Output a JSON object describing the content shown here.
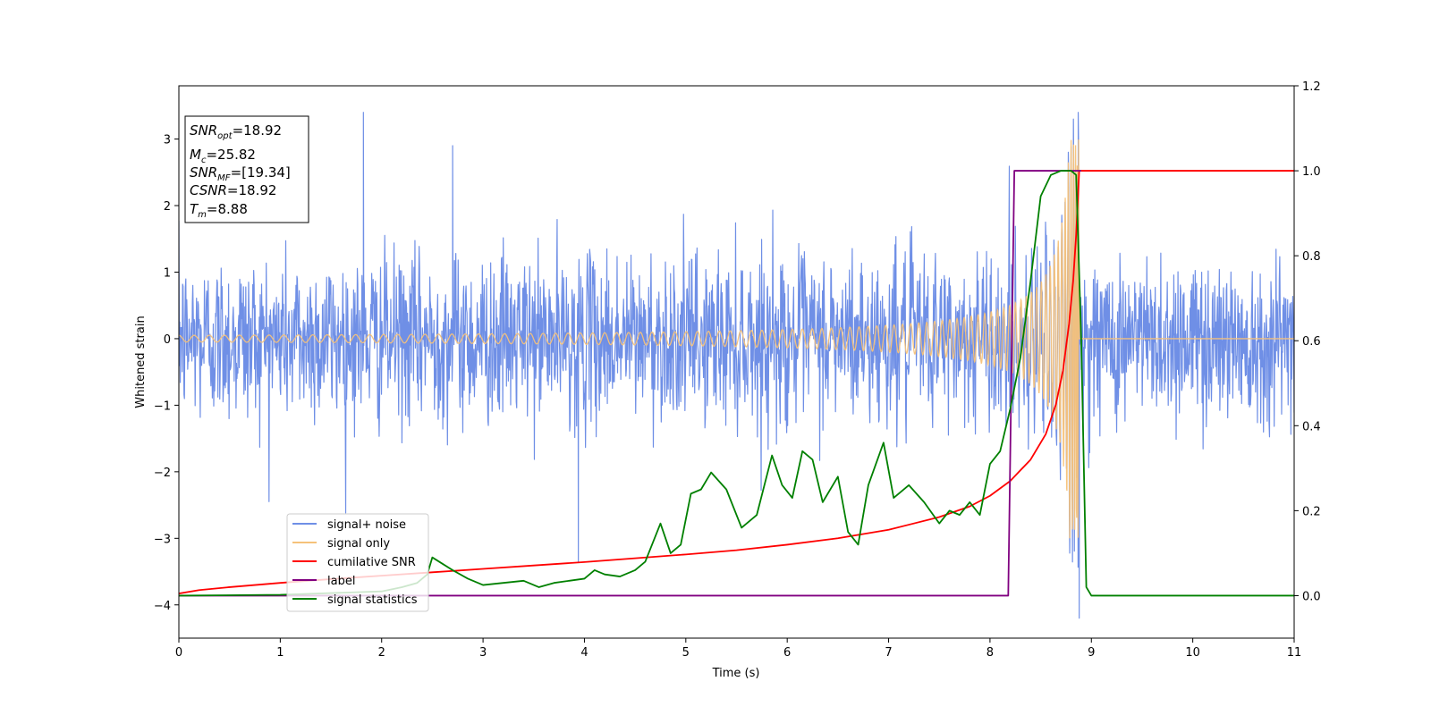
{
  "chart_data": {
    "type": "line",
    "xlabel": "Time (s)",
    "ylabel": "Whitened strain",
    "xlim": [
      0,
      11
    ],
    "ylim": [
      -4.5,
      3.8
    ],
    "y2lim": [
      -0.1,
      1.2
    ],
    "x_ticks": [
      0,
      1,
      2,
      3,
      4,
      5,
      6,
      7,
      8,
      9,
      10,
      11
    ],
    "y_ticks": [
      -4,
      -3,
      -2,
      -1,
      0,
      1,
      2,
      3
    ],
    "y_tick_labels": [
      "−4",
      "−3",
      "−2",
      "−1",
      "0",
      "1",
      "2",
      "3"
    ],
    "y2_ticks": [
      0.0,
      0.2,
      0.4,
      0.6,
      0.8,
      1.0,
      1.2
    ],
    "y2_tick_labels": [
      "0.0",
      "0.2",
      "0.4",
      "0.6",
      "0.8",
      "1.0",
      "1.2"
    ],
    "grid": false,
    "legend_position": "lower-left",
    "annotation_box": {
      "lines": [
        {
          "var": "SNR",
          "sub": "opt",
          "value": "=18.92"
        },
        {
          "var": "M",
          "sub": "c",
          "value": "=25.82"
        },
        {
          "var": "SNR",
          "sub": "MF",
          "value": "=[19.34]"
        },
        {
          "var": "CSNR",
          "sub": "",
          "value": "=18.92"
        },
        {
          "var": "T",
          "sub": "m",
          "value": "=8.88"
        }
      ]
    },
    "series": [
      {
        "name": "signal+ noise",
        "color": "#6f8fe6",
        "axis": "left",
        "noise_amplitude": 1.0,
        "peaks": [
          {
            "x": 1.82,
            "y": 3.4
          },
          {
            "x": 8.87,
            "y": 3.4
          },
          {
            "x": 8.88,
            "y": -4.2
          },
          {
            "x": 3.94,
            "y": -3.35
          },
          {
            "x": 2.7,
            "y": 2.9
          }
        ]
      },
      {
        "name": "signal only",
        "color": "#f5c27a",
        "axis": "left",
        "merger_time": 8.88,
        "peak_amplitude": 3.0,
        "baseline_amplitude": 0.05
      },
      {
        "name": "cumilative SNR",
        "color": "#ff0000",
        "axis": "right",
        "x": [
          0,
          0.2,
          0.5,
          1,
          1.5,
          2,
          2.5,
          3,
          3.5,
          4,
          4.5,
          5,
          5.5,
          6,
          6.5,
          7,
          7.5,
          7.8,
          8.0,
          8.2,
          8.4,
          8.55,
          8.65,
          8.72,
          8.78,
          8.82,
          8.85,
          8.87,
          8.88,
          9,
          10,
          11
        ],
        "y": [
          0.005,
          0.013,
          0.02,
          0.03,
          0.039,
          0.047,
          0.055,
          0.063,
          0.071,
          0.079,
          0.088,
          0.097,
          0.107,
          0.12,
          0.135,
          0.155,
          0.185,
          0.21,
          0.235,
          0.27,
          0.32,
          0.38,
          0.45,
          0.53,
          0.64,
          0.74,
          0.85,
          0.95,
          1.0,
          1.0,
          1.0,
          1.0
        ]
      },
      {
        "name": "label",
        "color": "#800080",
        "axis": "right",
        "x": [
          0,
          8.18,
          8.24,
          8.85,
          8.88,
          8.9
        ],
        "y": [
          0,
          0,
          1.0,
          1.0,
          1.0,
          1.0
        ]
      },
      {
        "name": "signal statistics",
        "color": "#008000",
        "axis": "right",
        "x": [
          0,
          1,
          2.0,
          2.2,
          2.35,
          2.45,
          2.5,
          2.6,
          2.7,
          2.85,
          3.0,
          3.2,
          3.4,
          3.55,
          3.7,
          3.85,
          4.0,
          4.1,
          4.2,
          4.35,
          4.5,
          4.6,
          4.7,
          4.75,
          4.85,
          4.95,
          5.05,
          5.15,
          5.25,
          5.4,
          5.55,
          5.7,
          5.85,
          5.95,
          6.05,
          6.15,
          6.25,
          6.35,
          6.5,
          6.6,
          6.7,
          6.8,
          6.95,
          7.05,
          7.2,
          7.35,
          7.5,
          7.6,
          7.7,
          7.8,
          7.9,
          8.0,
          8.1,
          8.2,
          8.3,
          8.4,
          8.5,
          8.6,
          8.7,
          8.8,
          8.85,
          8.9,
          8.95,
          9.0,
          10,
          11
        ],
        "y": [
          0.0,
          0.002,
          0.01,
          0.02,
          0.03,
          0.05,
          0.09,
          0.075,
          0.06,
          0.04,
          0.025,
          0.03,
          0.035,
          0.02,
          0.03,
          0.035,
          0.04,
          0.06,
          0.05,
          0.045,
          0.06,
          0.08,
          0.14,
          0.17,
          0.1,
          0.12,
          0.24,
          0.25,
          0.29,
          0.25,
          0.16,
          0.19,
          0.33,
          0.26,
          0.23,
          0.34,
          0.32,
          0.22,
          0.28,
          0.15,
          0.12,
          0.26,
          0.36,
          0.23,
          0.26,
          0.22,
          0.17,
          0.2,
          0.19,
          0.22,
          0.19,
          0.31,
          0.34,
          0.44,
          0.56,
          0.74,
          0.94,
          0.99,
          1.0,
          1.0,
          0.99,
          0.6,
          0.02,
          0.0,
          0.0,
          0.0
        ]
      }
    ]
  }
}
